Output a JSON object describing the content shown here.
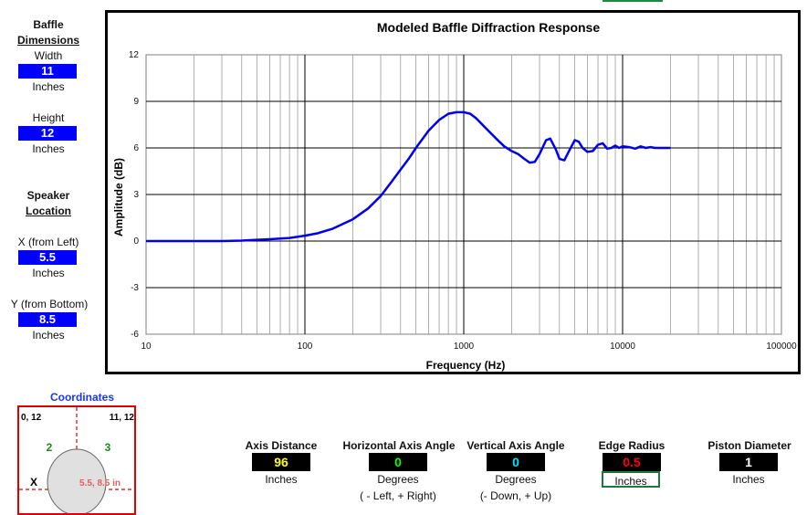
{
  "baffle": {
    "title_line1": "Baffle",
    "title_line2": "Dimensions",
    "width_label": "Width",
    "width_value": "11",
    "width_unit": "Inches",
    "height_label": "Height",
    "height_value": "12",
    "height_unit": "Inches"
  },
  "speaker": {
    "title_line1": "Speaker",
    "title_line2": "Location",
    "x_label": "X (from Left)",
    "x_value": "5.5",
    "x_unit": "Inches",
    "y_label": "Y (from Bottom)",
    "y_value": "8.5",
    "y_unit": "Inches"
  },
  "coordinates": {
    "title": "Coordinates",
    "top_left": "0, 12",
    "top_right": "11, 12",
    "quad2": "2",
    "quad3": "3",
    "x_mark": "X",
    "speaker_pos": "5.5, 8.5 in"
  },
  "params": {
    "axis_distance": {
      "label": "Axis Distance",
      "value": "96",
      "unit": "Inches"
    },
    "horizontal_angle": {
      "label": "Horizontal Axis Angle",
      "value": "0",
      "unit": "Degrees",
      "note": "( - Left, + Right)"
    },
    "vertical_angle": {
      "label": "Vertical Axis Angle",
      "value": "0",
      "unit": "Degrees",
      "note": "(- Down, + Up)"
    },
    "edge_radius": {
      "label": "Edge Radius",
      "value": "0.5",
      "unit": "Inches"
    },
    "piston_diameter": {
      "label": "Piston Diameter",
      "value": "1",
      "unit": "Inches"
    }
  },
  "colors": {
    "series": "#0000ee",
    "input_box": "#0000ff",
    "axis_distance_text": "#ffff00",
    "horizontal_angle_text": "#00ff00",
    "vertical_angle_text": "#00e5ff",
    "edge_radius_text": "#ff0000",
    "piston_text": "#ffffff",
    "coord_border": "#e00000"
  },
  "chart_data": {
    "type": "line",
    "title": "Modeled Baffle Diffraction Response",
    "xlabel": "Frequency (Hz)",
    "ylabel": "Amplitude (dB)",
    "x_scale": "log",
    "xlim": [
      10,
      100000
    ],
    "ylim": [
      -6,
      12
    ],
    "x_ticks": [
      "10",
      "100",
      "1000",
      "10000",
      "100000"
    ],
    "y_ticks": [
      "-6",
      "-3",
      "0",
      "3",
      "6",
      "9",
      "12"
    ],
    "grid": true,
    "series": [
      {
        "x": [
          10,
          20,
          30,
          40,
          50,
          60,
          70,
          80,
          100,
          120,
          150,
          200,
          250,
          300,
          350,
          400,
          450,
          500,
          600,
          700,
          800,
          900,
          1000,
          1100,
          1200,
          1400,
          1600,
          1800,
          2000,
          2200,
          2400,
          2600,
          2800,
          3000,
          3300,
          3500,
          3800,
          4000,
          4300,
          4600,
          5000,
          5300,
          5600,
          6000,
          6500,
          7000,
          7500,
          8000,
          8500,
          9000,
          9500,
          10000,
          11000,
          12000,
          13000,
          14000,
          15000,
          16000,
          17000,
          18000,
          20000
        ],
        "y": [
          0,
          0,
          0,
          0.03,
          0.08,
          0.12,
          0.16,
          0.2,
          0.35,
          0.5,
          0.8,
          1.4,
          2.1,
          2.9,
          3.8,
          4.6,
          5.3,
          6.0,
          7.1,
          7.8,
          8.2,
          8.3,
          8.3,
          8.2,
          7.9,
          7.2,
          6.6,
          6.1,
          5.8,
          5.6,
          5.3,
          5.05,
          5.1,
          5.6,
          6.5,
          6.6,
          5.9,
          5.3,
          5.2,
          5.8,
          6.5,
          6.4,
          6.0,
          5.75,
          5.8,
          6.2,
          6.3,
          5.95,
          6.0,
          6.15,
          6.0,
          6.1,
          6.05,
          5.95,
          6.1,
          6.0,
          6.05,
          6.0,
          6.0,
          6.0,
          6.0
        ]
      }
    ]
  }
}
